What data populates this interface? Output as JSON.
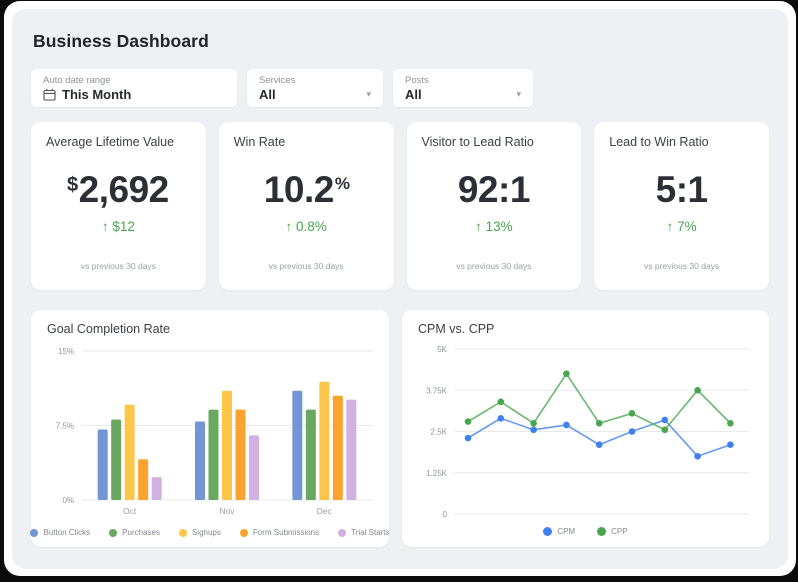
{
  "page": {
    "title": "Business Dashboard"
  },
  "icons": {
    "chevron_down": "▾",
    "up_arrow": "↑"
  },
  "colors": {
    "accent_green": "#4aa64f",
    "panel_bg": "#eef0f3",
    "card_bg": "#ffffff",
    "grid_line": "#e9eaec",
    "axis_text": "#8f949b"
  },
  "filters": [
    {
      "label": "Auto date range",
      "value": "This Month",
      "icon": "calendar-icon"
    },
    {
      "label": "Services",
      "value": "All",
      "icon": "chevron-down-icon"
    },
    {
      "label": "Posts",
      "value": "All",
      "icon": "chevron-down-icon"
    }
  ],
  "kpis": [
    {
      "title": "Average Lifetime Value",
      "prefix": "$",
      "value": "2,692",
      "suffix": "",
      "delta": "↑ $12",
      "note": "vs previous 30 days"
    },
    {
      "title": "Win Rate",
      "prefix": "",
      "value": "10.2",
      "suffix": "%",
      "delta": "↑ 0.8%",
      "note": "vs previous 30 days"
    },
    {
      "title": "Visitor to Lead Ratio",
      "prefix": "",
      "value": "92:1",
      "suffix": "",
      "delta": "↑ 13%",
      "note": "vs previous 30 days"
    },
    {
      "title": "Lead to Win Ratio",
      "prefix": "",
      "value": "5:1",
      "suffix": "",
      "delta": "↑ 7%",
      "note": "vs previous 30 days"
    }
  ],
  "chart_data": [
    {
      "type": "bar",
      "title": "Goal Completion Rate",
      "categories": [
        "Oct",
        "Nov",
        "Dec"
      ],
      "series": [
        {
          "name": "Button Clicks",
          "color": "#7296d3",
          "values": [
            7.1,
            7.9,
            11.0
          ]
        },
        {
          "name": "Purchases",
          "color": "#6aa75f",
          "values": [
            8.1,
            9.1,
            9.1
          ]
        },
        {
          "name": "Signups",
          "color": "#fdc64b",
          "values": [
            9.6,
            11.0,
            11.9
          ]
        },
        {
          "name": "Form Submissions",
          "color": "#fba32f",
          "values": [
            4.1,
            9.1,
            10.5
          ]
        },
        {
          "name": "Trial Starts",
          "color": "#d2b0e2",
          "values": [
            2.3,
            6.5,
            10.1
          ]
        }
      ],
      "ylabel": "",
      "xlabel": "",
      "ylim": [
        0,
        15
      ],
      "ytick_values": [
        0,
        7.5,
        15
      ],
      "ytick_labels": [
        "0%",
        "7.5%",
        "15%"
      ],
      "grid": true,
      "legend_position": "bottom"
    },
    {
      "type": "line",
      "title": "CPM vs. CPP",
      "x": [
        1,
        2,
        3,
        4,
        5,
        6,
        7,
        8,
        9
      ],
      "series": [
        {
          "name": "CPM",
          "color": "#3f80ee",
          "values": [
            2300,
            2900,
            2550,
            2700,
            2100,
            2500,
            2850,
            1750,
            2100
          ]
        },
        {
          "name": "CPP",
          "color": "#47a64e",
          "values": [
            2800,
            3400,
            2750,
            4250,
            2750,
            3050,
            2550,
            3750,
            2750
          ]
        }
      ],
      "ylabel": "",
      "xlabel": "",
      "ylim": [
        0,
        5000
      ],
      "ytick_values": [
        0,
        1250,
        2500,
        3750,
        5000
      ],
      "ytick_labels": [
        "0",
        "1.25K",
        "2.5K",
        "3.75K",
        "5K"
      ],
      "grid": true,
      "legend_position": "bottom"
    }
  ]
}
